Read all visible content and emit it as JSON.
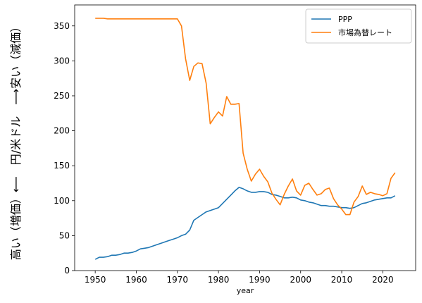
{
  "chart_data": {
    "type": "line",
    "title": "",
    "xlabel": "year",
    "ylabel": "高い（増価）⟵　円/米ドル　⟶安い（減価）",
    "xlim": [
      1945,
      2028
    ],
    "ylim": [
      0,
      380
    ],
    "xticks": [
      1950,
      1960,
      1970,
      1980,
      1990,
      2000,
      2010,
      2020
    ],
    "yticks": [
      0,
      50,
      100,
      150,
      200,
      250,
      300,
      350
    ],
    "grid": false,
    "legend_position": "top-right",
    "series": [
      {
        "name": "PPP",
        "color": "#1f77b4",
        "x": [
          1950,
          1951,
          1952,
          1953,
          1954,
          1955,
          1956,
          1957,
          1958,
          1959,
          1960,
          1961,
          1962,
          1963,
          1964,
          1965,
          1966,
          1967,
          1968,
          1969,
          1970,
          1971,
          1972,
          1973,
          1974,
          1975,
          1976,
          1977,
          1978,
          1979,
          1980,
          1981,
          1982,
          1983,
          1984,
          1985,
          1986,
          1987,
          1988,
          1989,
          1990,
          1991,
          1992,
          1993,
          1994,
          1995,
          1996,
          1997,
          1998,
          1999,
          2000,
          2001,
          2002,
          2003,
          2004,
          2005,
          2006,
          2007,
          2008,
          2009,
          2010,
          2011,
          2012,
          2013,
          2014,
          2015,
          2016,
          2017,
          2018,
          2019,
          2020,
          2021,
          2022,
          2023
        ],
        "y": [
          16,
          19,
          19,
          20,
          22,
          22,
          23,
          25,
          25,
          26,
          28,
          31,
          32,
          33,
          35,
          37,
          39,
          41,
          43,
          45,
          47,
          50,
          52,
          58,
          72,
          76,
          80,
          84,
          86,
          88,
          90,
          96,
          102,
          108,
          114,
          119,
          117,
          114,
          112,
          112,
          113,
          113,
          112,
          109,
          108,
          106,
          104,
          104,
          105,
          104,
          101,
          100,
          98,
          97,
          95,
          93,
          93,
          92,
          92,
          91,
          90,
          90,
          89,
          90,
          93,
          96,
          97,
          99,
          101,
          102,
          103,
          104,
          104,
          107
        ]
      },
      {
        "name": "市場為替レート",
        "color": "#ff7f0e",
        "x": [
          1950,
          1951,
          1952,
          1953,
          1954,
          1955,
          1956,
          1957,
          1958,
          1959,
          1960,
          1961,
          1962,
          1963,
          1964,
          1965,
          1966,
          1967,
          1968,
          1969,
          1970,
          1971,
          1972,
          1973,
          1974,
          1975,
          1976,
          1977,
          1978,
          1979,
          1980,
          1981,
          1982,
          1983,
          1984,
          1985,
          1986,
          1987,
          1988,
          1989,
          1990,
          1991,
          1992,
          1993,
          1994,
          1995,
          1996,
          1997,
          1998,
          1999,
          2000,
          2001,
          2002,
          2003,
          2004,
          2005,
          2006,
          2007,
          2008,
          2009,
          2010,
          2011,
          2012,
          2013,
          2014,
          2015,
          2016,
          2017,
          2018,
          2019,
          2020,
          2021,
          2022,
          2023
        ],
        "y": [
          361,
          361,
          361,
          360,
          360,
          360,
          360,
          360,
          360,
          360,
          360,
          360,
          360,
          360,
          360,
          360,
          360,
          360,
          360,
          360,
          360,
          350,
          303,
          272,
          292,
          297,
          296,
          268,
          210,
          219,
          227,
          221,
          249,
          238,
          238,
          239,
          168,
          145,
          128,
          138,
          145,
          135,
          127,
          111,
          102,
          94,
          109,
          121,
          131,
          114,
          108,
          122,
          125,
          116,
          108,
          110,
          116,
          118,
          103,
          94,
          88,
          80,
          80,
          98,
          106,
          121,
          109,
          112,
          110,
          109,
          107,
          110,
          132,
          140
        ]
      }
    ]
  }
}
